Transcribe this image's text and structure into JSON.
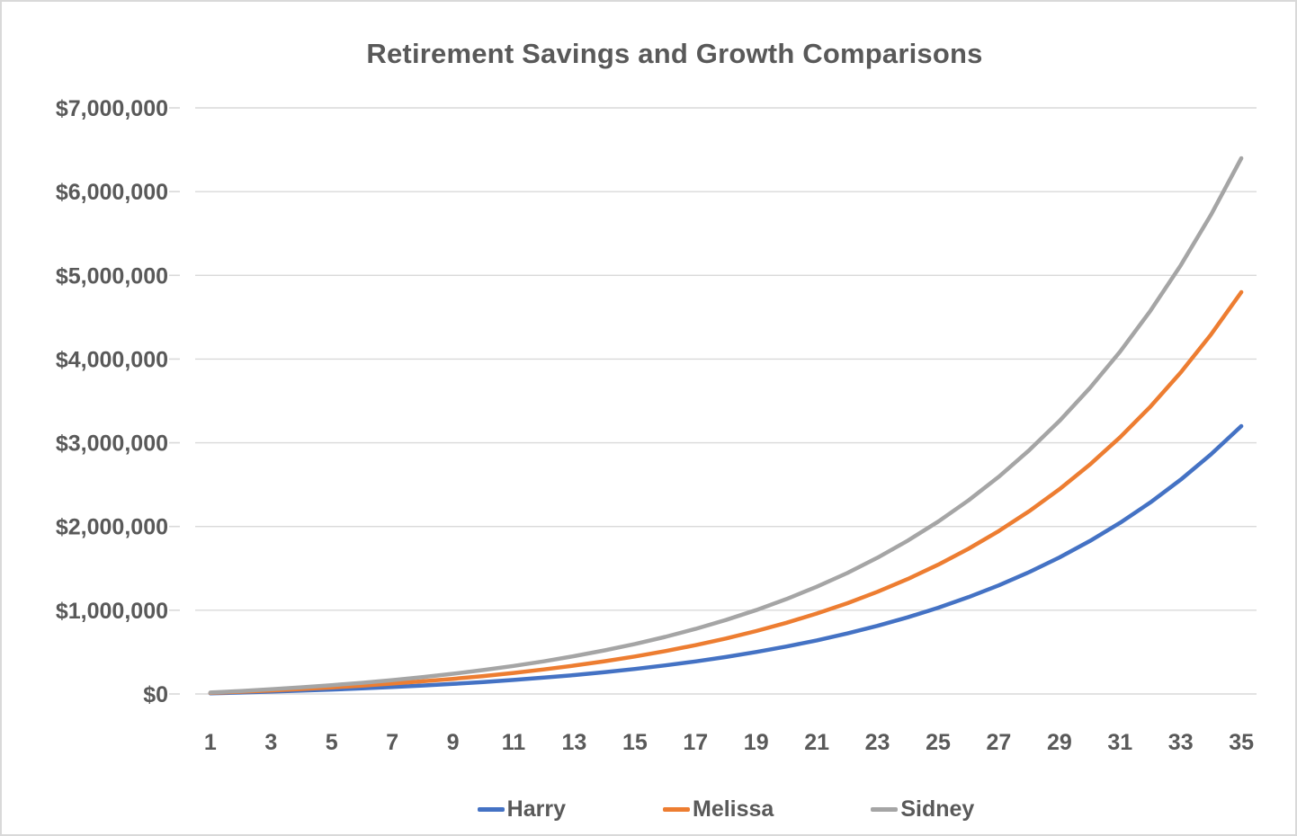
{
  "chart_data": {
    "type": "line",
    "title": "Retirement Savings and Growth Comparisons",
    "xlabel": "",
    "ylabel": "",
    "x": [
      1,
      2,
      3,
      4,
      5,
      6,
      7,
      8,
      9,
      10,
      11,
      12,
      13,
      14,
      15,
      16,
      17,
      18,
      19,
      20,
      21,
      22,
      23,
      24,
      25,
      26,
      27,
      28,
      29,
      30,
      31,
      32,
      33,
      34,
      35
    ],
    "x_ticks_shown": [
      1,
      3,
      5,
      7,
      9,
      11,
      13,
      15,
      17,
      19,
      21,
      23,
      25,
      27,
      29,
      31,
      33,
      35
    ],
    "ylim": [
      0,
      7000000
    ],
    "y_ticks": [
      {
        "value": 0,
        "label": "$0"
      },
      {
        "value": 1000000,
        "label": "$1,000,000"
      },
      {
        "value": 2000000,
        "label": "$2,000,000"
      },
      {
        "value": 3000000,
        "label": "$3,000,000"
      },
      {
        "value": 4000000,
        "label": "$4,000,000"
      },
      {
        "value": 5000000,
        "label": "$5,000,000"
      },
      {
        "value": 6000000,
        "label": "$6,000,000"
      },
      {
        "value": 7000000,
        "label": "$7,000,000"
      }
    ],
    "grid": "horizontal",
    "legend_position": "bottom",
    "series": [
      {
        "name": "Harry",
        "color": "#4472C4",
        "values": [
          8300,
          17600,
          28000,
          39500,
          52400,
          66800,
          82800,
          100600,
          120600,
          142700,
          167500,
          195100,
          225900,
          260200,
          298400,
          341100,
          388600,
          441700,
          500900,
          566800,
          640300,
          722200,
          813600,
          915500,
          1029200,
          1155900,
          1297100,
          1454700,
          1630300,
          1826100,
          2044400,
          2287900,
          2559300,
          2861900,
          3199600
        ]
      },
      {
        "name": "Melissa",
        "color": "#ED7D31",
        "values": [
          12500,
          26400,
          42000,
          59300,
          78600,
          100200,
          124200,
          150900,
          180900,
          214100,
          251200,
          292600,
          338800,
          390300,
          447600,
          511600,
          582900,
          662500,
          751300,
          850200,
          960400,
          1083400,
          1220400,
          1373300,
          1543700,
          1733800,
          1945700,
          2182000,
          2445400,
          2739100,
          3066600,
          3431800,
          3839000,
          4292900,
          4799400
        ]
      },
      {
        "name": "Sidney",
        "color": "#A5A5A5",
        "values": [
          16700,
          35200,
          56000,
          79100,
          104800,
          133600,
          165600,
          201300,
          241100,
          285500,
          335000,
          390200,
          451700,
          520300,
          596800,
          682100,
          777300,
          883300,
          1001700,
          1133600,
          1280600,
          1444500,
          1627300,
          1831100,
          2058300,
          2311700,
          2594300,
          2909300,
          3260500,
          3652100,
          4088800,
          4575700,
          5118600,
          5723900,
          6399100
        ]
      }
    ]
  },
  "colors": {
    "text": "#595959",
    "gridline": "#D9D9D9",
    "frame_border": "#D9D9D9",
    "background": "#FFFFFF"
  }
}
